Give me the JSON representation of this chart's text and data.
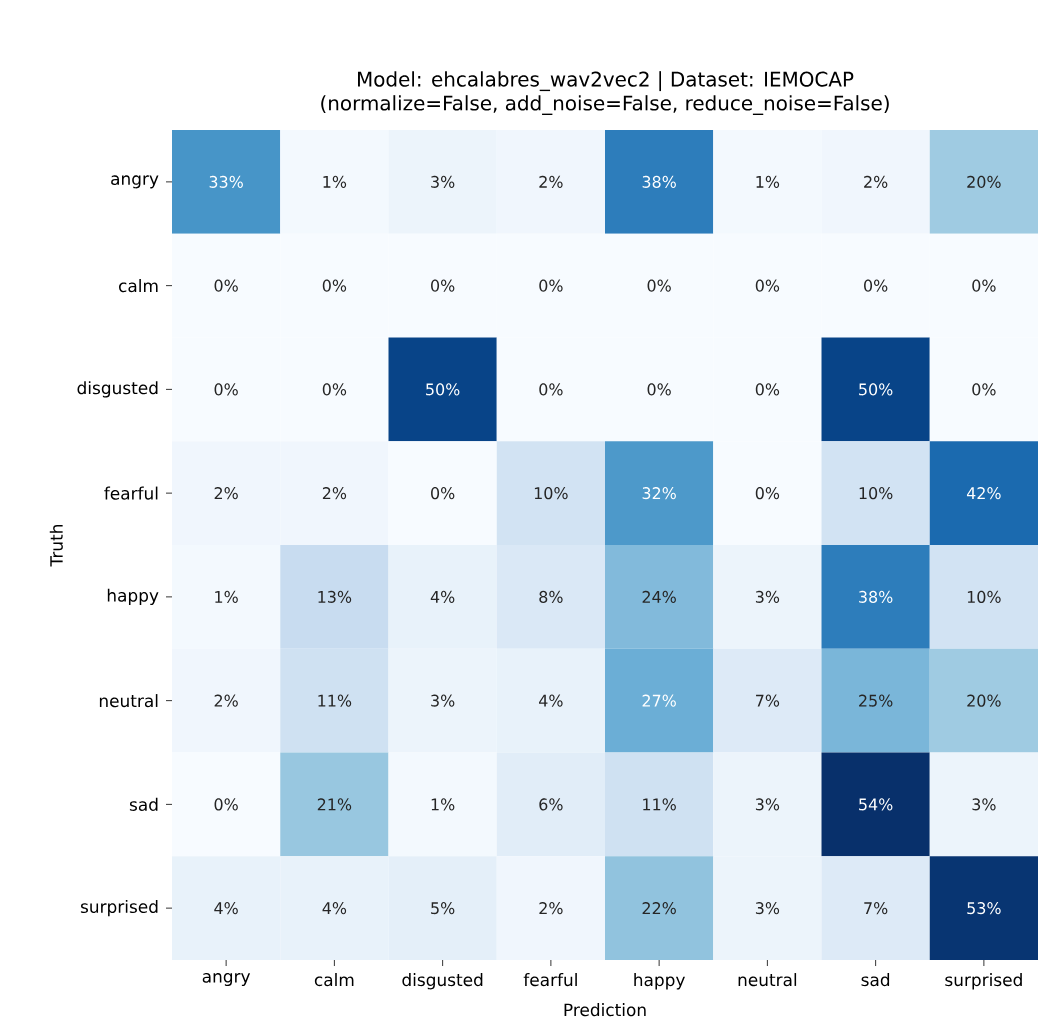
{
  "chart_data": {
    "type": "heatmap",
    "title": "Model: ehcalabres_wav2vec2 | Dataset: IEMOCAP",
    "subtitle": "(normalize=False, add_noise=False, reduce_noise=False)",
    "xlabel": "Prediction",
    "ylabel": "Truth",
    "categories": [
      "angry",
      "calm",
      "disgusted",
      "fearful",
      "happy",
      "neutral",
      "sad",
      "surprised"
    ],
    "y_categories": [
      "angry",
      "calm",
      "disgusted",
      "fearful",
      "happy",
      "neutral",
      "sad",
      "surprised"
    ],
    "cells": [
      [
        33,
        1,
        3,
        2,
        38,
        1,
        2,
        20
      ],
      [
        0,
        0,
        0,
        0,
        0,
        0,
        0,
        0
      ],
      [
        0,
        0,
        50,
        0,
        0,
        0,
        50,
        0
      ],
      [
        2,
        2,
        0,
        10,
        32,
        0,
        10,
        42
      ],
      [
        1,
        13,
        4,
        8,
        24,
        3,
        38,
        10
      ],
      [
        2,
        11,
        3,
        4,
        27,
        7,
        25,
        20
      ],
      [
        0,
        21,
        1,
        6,
        11,
        3,
        54,
        3
      ],
      [
        4,
        4,
        5,
        2,
        22,
        3,
        7,
        53
      ]
    ],
    "cell_labels": [
      [
        "33%",
        "1%",
        "3%",
        "2%",
        "38%",
        "1%",
        "2%",
        "20%"
      ],
      [
        "0%",
        "0%",
        "0%",
        "0%",
        "0%",
        "0%",
        "0%",
        "0%"
      ],
      [
        "0%",
        "0%",
        "50%",
        "0%",
        "0%",
        "0%",
        "50%",
        "0%"
      ],
      [
        "2%",
        "2%",
        "0%",
        "10%",
        "32%",
        "0%",
        "10%",
        "42%"
      ],
      [
        "1%",
        "13%",
        "4%",
        "8%",
        "24%",
        "3%",
        "38%",
        "10%"
      ],
      [
        "2%",
        "11%",
        "3%",
        "4%",
        "27%",
        "7%",
        "25%",
        "20%"
      ],
      [
        "0%",
        "21%",
        "1%",
        "6%",
        "11%",
        "3%",
        "54%",
        "3%"
      ],
      [
        "4%",
        "4%",
        "5%",
        "2%",
        "22%",
        "3%",
        "7%",
        "53%"
      ]
    ]
  }
}
